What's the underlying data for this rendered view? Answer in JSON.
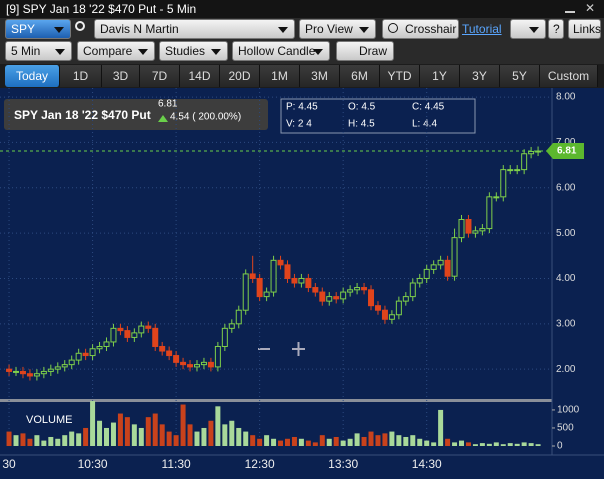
{
  "window": {
    "title": "[9] SPY Jan 18 '22 $470 Put - 5 Min"
  },
  "toolbar": {
    "symbol": "SPY",
    "account": "Davis N Martin",
    "view": "Pro View",
    "crosshair": "Crosshair",
    "tutorial": "Tutorial",
    "links": "Links",
    "interval": "5 Min",
    "compare": "Compare",
    "studies": "Studies",
    "style": "Hollow Candle",
    "draw": "Draw"
  },
  "ranges": [
    "Today",
    "1D",
    "3D",
    "7D",
    "14D",
    "20D",
    "1M",
    "3M",
    "6M",
    "YTD",
    "1Y",
    "3Y",
    "5Y",
    "Custom"
  ],
  "chart_data": {
    "type": "candlestick",
    "quote": {
      "name": "SPY Jan 18 '22 $470 Put",
      "last": "6.81",
      "change": "4.54 ( 200.00%)"
    },
    "info": [
      "P: 4.45",
      "O: 4.5",
      "C: 4.45",
      "V: 2 4",
      "H: 4.5",
      "L: 4.4"
    ],
    "volume_label": "VOLUME",
    "up_color": "#7fd04a",
    "down_color": "#e0441c",
    "vol_up_color": "#a9d99a",
    "vol_down_color": "#c9421c",
    "open": [
      2.0,
      1.95,
      1.95,
      1.9,
      1.85,
      1.9,
      1.95,
      2.0,
      2.05,
      2.1,
      2.2,
      2.35,
      2.3,
      2.45,
      2.5,
      2.6,
      2.9,
      2.85,
      2.7,
      2.8,
      2.95,
      2.9,
      2.5,
      2.4,
      2.3,
      2.15,
      2.1,
      2.05,
      2.1,
      2.15,
      2.05,
      2.5,
      2.9,
      3.0,
      3.3,
      4.1,
      4.0,
      3.6,
      3.7,
      4.4,
      4.3,
      4.0,
      3.9,
      4.0,
      3.8,
      3.7,
      3.5,
      3.6,
      3.55,
      3.7,
      3.75,
      3.8,
      3.75,
      3.4,
      3.3,
      3.1,
      3.2,
      3.5,
      3.6,
      3.9,
      4.0,
      4.2,
      4.3,
      4.4,
      4.05,
      4.9,
      5.3,
      5.0,
      5.05,
      5.1,
      5.8,
      5.8,
      6.4,
      6.4,
      6.4,
      6.75,
      6.8
    ],
    "high": [
      2.1,
      2.05,
      2.05,
      2.0,
      2.0,
      2.05,
      2.1,
      2.15,
      2.2,
      2.3,
      2.45,
      2.45,
      2.55,
      2.6,
      2.7,
      3.0,
      3.0,
      2.95,
      2.9,
      3.05,
      3.05,
      3.0,
      2.6,
      2.5,
      2.4,
      2.25,
      2.2,
      2.2,
      2.25,
      2.25,
      2.6,
      3.0,
      3.1,
      3.4,
      4.2,
      4.5,
      4.1,
      3.8,
      4.5,
      4.5,
      4.4,
      4.1,
      4.1,
      4.1,
      3.9,
      3.8,
      3.7,
      3.7,
      3.8,
      3.85,
      3.9,
      3.9,
      3.85,
      3.5,
      3.4,
      3.3,
      3.6,
      3.7,
      4.0,
      4.1,
      4.3,
      4.4,
      4.5,
      4.5,
      5.1,
      5.4,
      5.4,
      5.15,
      5.2,
      5.9,
      5.9,
      6.5,
      6.5,
      6.5,
      6.85,
      6.9,
      6.91
    ],
    "low": [
      1.85,
      1.85,
      1.8,
      1.75,
      1.75,
      1.8,
      1.85,
      1.9,
      1.95,
      2.0,
      2.1,
      2.2,
      2.2,
      2.35,
      2.4,
      2.5,
      2.75,
      2.6,
      2.6,
      2.7,
      2.8,
      2.4,
      2.3,
      2.2,
      2.05,
      2.0,
      1.95,
      1.95,
      2.0,
      1.95,
      1.95,
      2.4,
      2.8,
      2.9,
      3.2,
      3.9,
      3.5,
      3.5,
      3.6,
      4.2,
      3.9,
      3.8,
      3.8,
      3.7,
      3.6,
      3.4,
      3.4,
      3.45,
      3.45,
      3.6,
      3.65,
      3.65,
      3.3,
      3.2,
      3.0,
      3.0,
      3.1,
      3.4,
      3.5,
      3.8,
      3.9,
      4.1,
      4.2,
      3.95,
      3.95,
      4.8,
      4.9,
      4.9,
      4.95,
      5.0,
      5.7,
      5.7,
      6.3,
      6.3,
      6.3,
      6.65,
      6.7
    ],
    "close": [
      1.95,
      1.95,
      1.9,
      1.85,
      1.9,
      1.95,
      2.0,
      2.05,
      2.1,
      2.2,
      2.35,
      2.3,
      2.45,
      2.5,
      2.6,
      2.9,
      2.85,
      2.7,
      2.8,
      2.95,
      2.9,
      2.5,
      2.4,
      2.3,
      2.15,
      2.1,
      2.05,
      2.1,
      2.15,
      2.05,
      2.5,
      2.9,
      3.0,
      3.3,
      4.1,
      4.0,
      3.6,
      3.7,
      4.4,
      4.3,
      4.0,
      3.9,
      4.0,
      3.8,
      3.7,
      3.5,
      3.6,
      3.55,
      3.7,
      3.75,
      3.8,
      3.75,
      3.4,
      3.3,
      3.1,
      3.2,
      3.5,
      3.6,
      3.9,
      4.0,
      4.2,
      4.3,
      4.4,
      4.05,
      4.9,
      5.3,
      5.0,
      5.05,
      5.1,
      5.8,
      5.8,
      6.4,
      6.4,
      6.4,
      6.75,
      6.8,
      6.81
    ],
    "volume": [
      400,
      300,
      350,
      200,
      300,
      150,
      250,
      200,
      300,
      400,
      350,
      500,
      1250,
      700,
      500,
      650,
      900,
      800,
      600,
      500,
      800,
      900,
      600,
      400,
      300,
      1150,
      600,
      400,
      500,
      700,
      1100,
      600,
      700,
      500,
      400,
      300,
      200,
      300,
      200,
      150,
      200,
      250,
      200,
      150,
      100,
      300,
      200,
      250,
      150,
      200,
      350,
      250,
      400,
      300,
      350,
      400,
      300,
      250,
      300,
      200,
      150,
      100,
      1000,
      200,
      100,
      150,
      100,
      50,
      80,
      60,
      100,
      50,
      80,
      60,
      100,
      80,
      50
    ],
    "xlim": [
      -1.3,
      78
    ],
    "xticks": [
      {
        "value": 0,
        "label": "30"
      },
      {
        "value": 12,
        "label": "10:30"
      },
      {
        "value": 24,
        "label": "11:30"
      },
      {
        "value": 36,
        "label": "12:30"
      },
      {
        "value": 48,
        "label": "13:30"
      },
      {
        "value": 60,
        "label": "14:30"
      }
    ],
    "ylim": [
      1.32,
      8.2
    ],
    "yticks": [
      {
        "value": 2,
        "label": "2.00"
      },
      {
        "value": 3,
        "label": "3.00"
      },
      {
        "value": 4,
        "label": "4.00"
      },
      {
        "value": 5,
        "label": "5.00"
      },
      {
        "value": 6,
        "label": "6.00"
      },
      {
        "value": 7,
        "label": "7.00"
      },
      {
        "value": 8,
        "label": "8.00"
      }
    ],
    "vlim": [
      0,
      1220
    ],
    "vticks": [
      0,
      500,
      1000
    ],
    "grid": true
  }
}
